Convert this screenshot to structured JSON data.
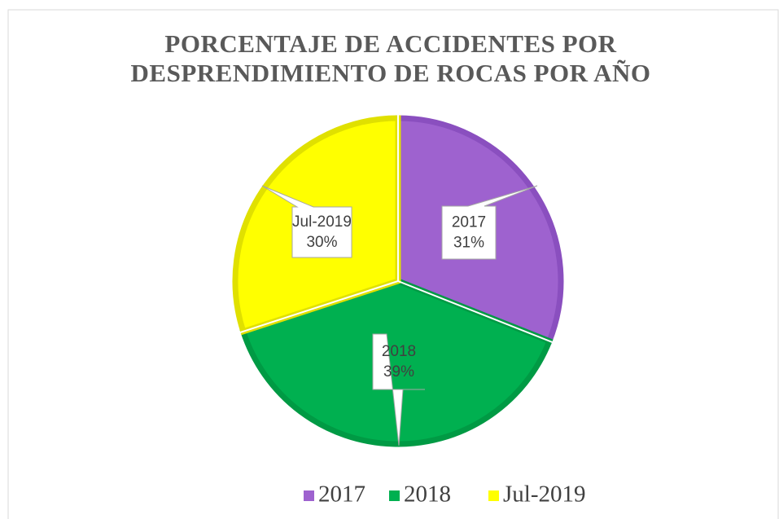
{
  "chart_data": {
    "type": "pie",
    "title": "PORCENTAJE DE ACCIDENTES POR DESPRENDIMIENTO DE ROCAS POR AÑO",
    "categories": [
      "2017",
      "2018",
      "Jul-2019"
    ],
    "values": [
      31,
      39,
      30
    ],
    "value_labels": [
      "31%",
      "39%",
      "30%"
    ],
    "colors": [
      "#9e62cf",
      "#00b050",
      "#ffff00"
    ],
    "border_colors": [
      "#8a4fbf",
      "#009a44",
      "#e0e000"
    ],
    "legend": "bottom"
  }
}
